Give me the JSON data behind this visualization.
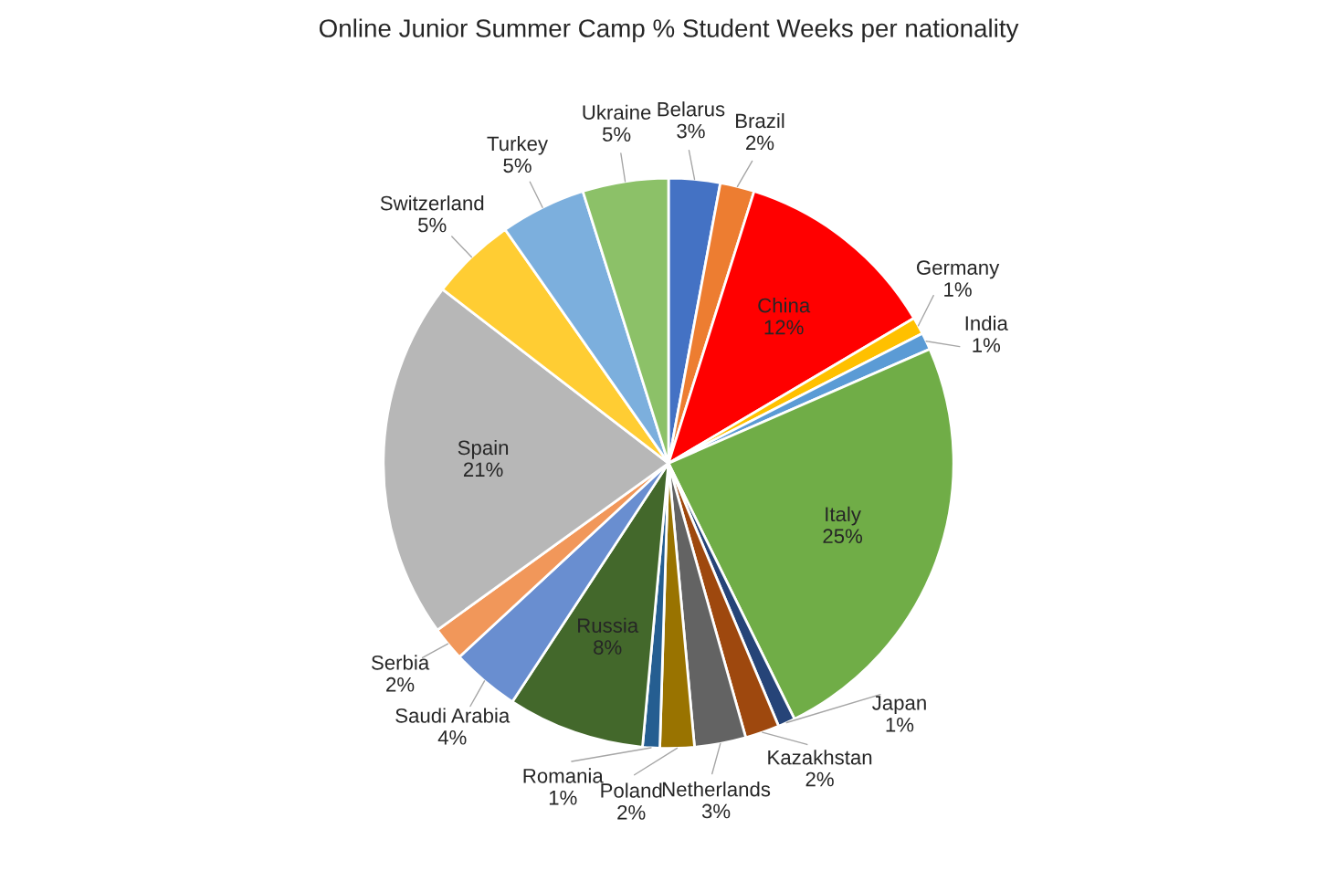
{
  "chart_data": {
    "type": "pie",
    "title": "Online Junior Summer Camp % Student Weeks per nationality",
    "categories": [
      "Belarus",
      "Brazil",
      "China",
      "Germany",
      "India",
      "Italy",
      "Japan",
      "Kazakhstan",
      "Netherlands",
      "Poland",
      "Romania",
      "Russia",
      "Saudi Arabia",
      "Serbia",
      "Spain",
      "Switzerland",
      "Turkey",
      "Ukraine"
    ],
    "values": [
      3,
      2,
      12,
      1,
      1,
      25,
      1,
      2,
      3,
      2,
      1,
      8,
      4,
      2,
      21,
      5,
      5,
      5
    ],
    "value_labels": [
      "3%",
      "2%",
      "12%",
      "1%",
      "1%",
      "25%",
      "1%",
      "2%",
      "3%",
      "2%",
      "1%",
      "8%",
      "4%",
      "2%",
      "21%",
      "5%",
      "5%",
      "5%"
    ],
    "colors": [
      "#4472c4",
      "#ed7d31",
      "#ff0000",
      "#ffc000",
      "#5b9bd5",
      "#70ad47",
      "#264478",
      "#9e480e",
      "#636363",
      "#997300",
      "#255e91",
      "#43682b",
      "#698ed0",
      "#f1975a",
      "#b7b7b7",
      "#ffcd33",
      "#7cafdd",
      "#8cc168"
    ],
    "data_labels": true
  }
}
